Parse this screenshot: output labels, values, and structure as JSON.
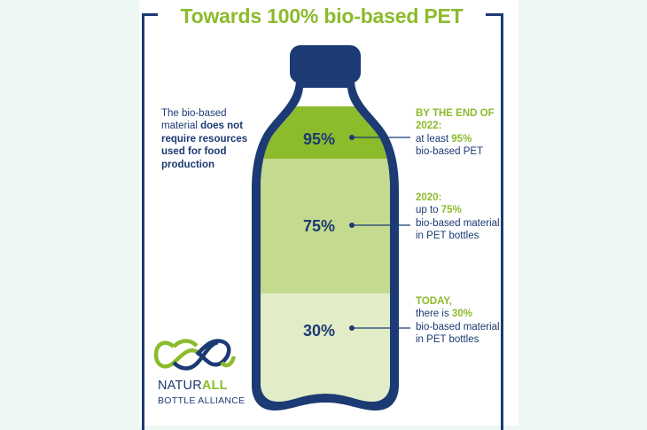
{
  "title": "Towards 100% bio-based PET",
  "left_note": {
    "part1": "The bio-based material ",
    "part2": "does not require resources used for food production"
  },
  "stages": [
    {
      "percent": "95%",
      "heading": "BY THE END OF 2022:",
      "line1": "at least ",
      "value": "95%",
      "line2": "bio-based PET"
    },
    {
      "percent": "75%",
      "heading": "2020:",
      "line1": "up to ",
      "value": "75%",
      "line2": "bio-based material in PET bottles"
    },
    {
      "percent": "30%",
      "heading": "TODAY,",
      "line1": "there is ",
      "value": "30%",
      "line2": "bio-based material in PET bottles"
    }
  ],
  "logo": {
    "brand_main": "NATUR",
    "brand_accent": "ALL",
    "subtitle": "BOTTLE ALLIANCE"
  },
  "colors": {
    "navy": "#1c3a73",
    "green_dark": "#8cbb2c",
    "green_mid": "#c4da8e",
    "green_light": "#e2ecc7",
    "background": "#edf7f4"
  }
}
